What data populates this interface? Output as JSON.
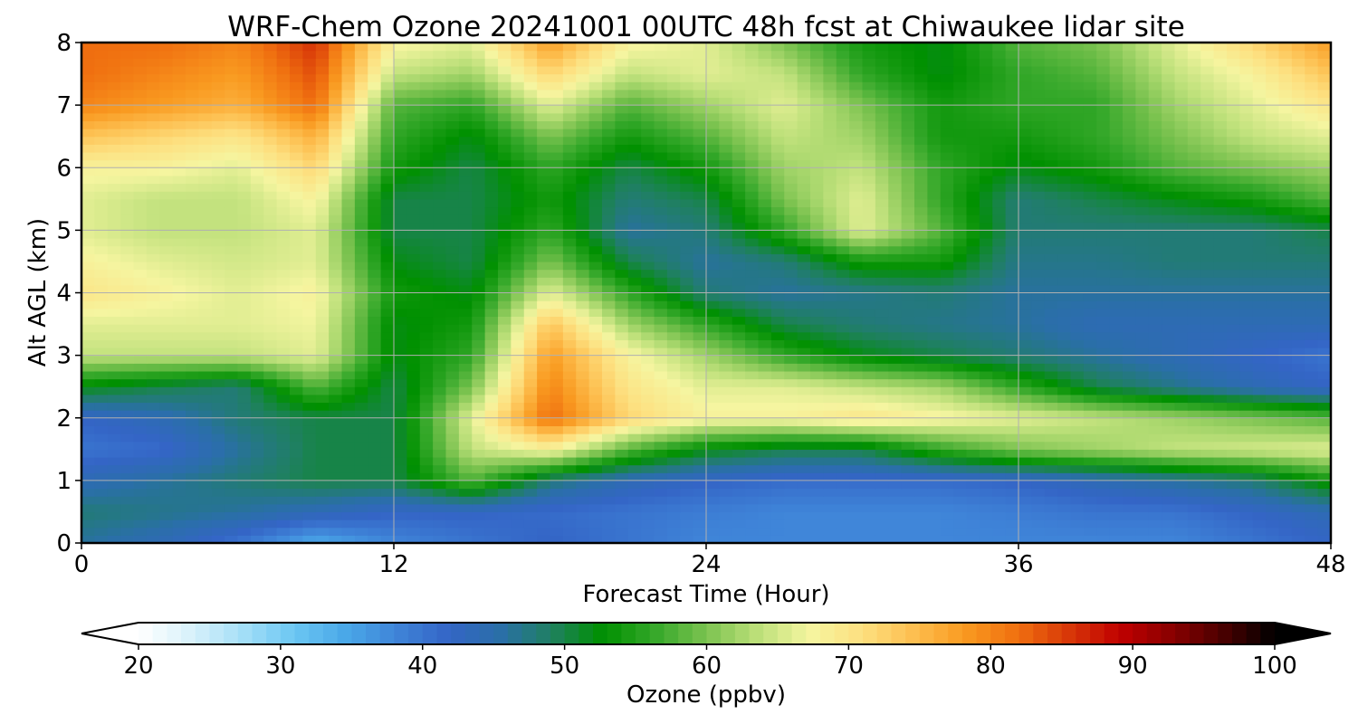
{
  "chart_data": {
    "type": "heatmap",
    "title": "WRF-Chem Ozone  20241001 00UTC 48h fcst at Chiwaukee lidar site",
    "xlabel": "Forecast Time (Hour)",
    "ylabel": "Alt AGL (km)",
    "xlim": [
      0,
      48
    ],
    "ylim": [
      0,
      8
    ],
    "xticks": [
      0,
      12,
      24,
      36,
      48
    ],
    "yticks": [
      0,
      1,
      2,
      3,
      4,
      5,
      6,
      7,
      8
    ],
    "grid": true,
    "colorbar": {
      "label": "Ozone  (ppbv)",
      "min": 20,
      "max": 100,
      "ticks": [
        20,
        30,
        40,
        50,
        60,
        70,
        80,
        90,
        100
      ],
      "extend": "both",
      "orientation": "horizontal",
      "colors": [
        "#ffffff",
        "#d9f2fb",
        "#a6dff7",
        "#6cc7f3",
        "#4aa8e8",
        "#3f84d8",
        "#3465c6",
        "#2a6fa8",
        "#1f8060",
        "#009000",
        "#35a82a",
        "#7cc350",
        "#bde07a",
        "#f5f5a0",
        "#fde080",
        "#fdbf50",
        "#f99a20",
        "#f07010",
        "#d83808",
        "#c00000",
        "#8a0000",
        "#4a0000",
        "#000000"
      ]
    },
    "x": [
      0,
      3,
      6,
      9,
      12,
      15,
      18,
      21,
      24,
      27,
      30,
      33,
      36,
      39,
      42,
      45,
      48
    ],
    "y": [
      0,
      0.5,
      1,
      1.5,
      2,
      2.5,
      3,
      3.5,
      4,
      4.5,
      5,
      5.5,
      6,
      6.5,
      7,
      7.5,
      8
    ],
    "z": [
      [
        46,
        44,
        40,
        34,
        38,
        40,
        42,
        40,
        38,
        38,
        38,
        38,
        38,
        38,
        38,
        40,
        42
      ],
      [
        48,
        47,
        46,
        44,
        42,
        42,
        41,
        40,
        39,
        38,
        38,
        38,
        39,
        40,
        40,
        42,
        44
      ],
      [
        44,
        46,
        48,
        50,
        50,
        58,
        48,
        44,
        42,
        41,
        41,
        41,
        42,
        44,
        46,
        48,
        54
      ],
      [
        40,
        41,
        46,
        50,
        50,
        64,
        68,
        58,
        52,
        50,
        50,
        56,
        60,
        62,
        64,
        65,
        66
      ],
      [
        42,
        44,
        48,
        50,
        50,
        66,
        82,
        72,
        68,
        68,
        70,
        68,
        66,
        64,
        62,
        60,
        58
      ],
      [
        52,
        50,
        48,
        58,
        50,
        60,
        80,
        70,
        66,
        66,
        64,
        62,
        56,
        50,
        47,
        44,
        42
      ],
      [
        64,
        64,
        64,
        66,
        52,
        56,
        78,
        68,
        62,
        56,
        52,
        50,
        48,
        46,
        44,
        42,
        40
      ],
      [
        66,
        66,
        66,
        67,
        52,
        54,
        74,
        62,
        56,
        50,
        48,
        47,
        46,
        44,
        44,
        44,
        44
      ],
      [
        70,
        68,
        66,
        68,
        54,
        52,
        66,
        56,
        48,
        46,
        47,
        48,
        46,
        46,
        46,
        46,
        46
      ],
      [
        68,
        66,
        65,
        66,
        52,
        50,
        60,
        50,
        46,
        48,
        54,
        54,
        47,
        47,
        48,
        48,
        48
      ],
      [
        66,
        64,
        64,
        66,
        50,
        50,
        56,
        46,
        48,
        56,
        66,
        58,
        48,
        48,
        48,
        48,
        50
      ],
      [
        66,
        64,
        64,
        68,
        50,
        50,
        54,
        48,
        50,
        60,
        66,
        56,
        48,
        50,
        52,
        54,
        58
      ],
      [
        68,
        68,
        66,
        72,
        54,
        50,
        56,
        50,
        54,
        62,
        64,
        56,
        52,
        54,
        58,
        60,
        62
      ],
      [
        74,
        72,
        70,
        76,
        56,
        52,
        60,
        54,
        58,
        64,
        62,
        54,
        54,
        56,
        60,
        64,
        66
      ],
      [
        80,
        78,
        76,
        82,
        58,
        56,
        66,
        58,
        62,
        66,
        60,
        54,
        56,
        56,
        62,
        66,
        70
      ],
      [
        82,
        80,
        78,
        84,
        64,
        62,
        72,
        64,
        66,
        64,
        56,
        52,
        56,
        58,
        64,
        68,
        74
      ],
      [
        82,
        82,
        80,
        86,
        68,
        66,
        78,
        68,
        66,
        60,
        54,
        52,
        58,
        60,
        66,
        72,
        78
      ]
    ]
  }
}
